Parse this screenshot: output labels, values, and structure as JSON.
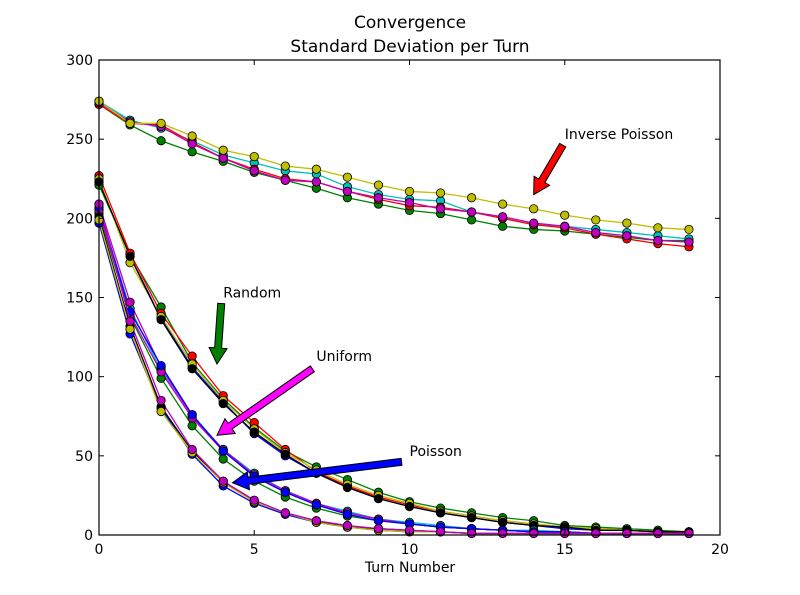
{
  "chart_data": {
    "type": "line",
    "title": "Convergence",
    "subtitle": "Standard Deviation per Turn",
    "xlabel": "Turn Number",
    "ylabel": "",
    "xlim": [
      0,
      20
    ],
    "ylim": [
      0,
      300
    ],
    "xticks": [
      0,
      5,
      10,
      15,
      20
    ],
    "yticks": [
      0,
      50,
      100,
      150,
      200,
      250,
      300
    ],
    "xtick_labels": [
      "0",
      "5",
      "10",
      "15",
      "20"
    ],
    "ytick_labels": [
      "0",
      "50",
      "100",
      "150",
      "200",
      "250",
      "300"
    ],
    "grid": false,
    "legend": "none",
    "x": [
      0,
      1,
      2,
      3,
      4,
      5,
      6,
      7,
      8,
      9,
      10,
      11,
      12,
      13,
      14,
      15,
      16,
      17,
      18,
      19
    ],
    "groups": [
      {
        "name": "Inverse Poisson",
        "series": [
          {
            "color": "#008000",
            "values": [
              272,
              259,
              249,
              242,
              236,
              229,
              224,
              219,
              213,
              209,
              205,
              203,
              199,
              195,
              193,
              192,
              190,
              188,
              186,
              186
            ]
          },
          {
            "color": "#00bfbf",
            "values": [
              274,
              262,
              257,
              249,
              240,
              235,
              230,
              228,
              220,
              215,
              212,
              211,
              204,
              200,
              196,
              195,
              193,
              191,
              189,
              187
            ]
          },
          {
            "color": "#ff0000",
            "values": [
              272,
              260,
              259,
              248,
              238,
              231,
              225,
              223,
              217,
              212,
              208,
              207,
              204,
              200,
              196,
              194,
              190,
              187,
              184,
              182
            ]
          },
          {
            "color": "#bf00bf",
            "values": [
              273,
              261,
              258,
              247,
              238,
              230,
              224,
              223,
              217,
              213,
              210,
              206,
              204,
              201,
              197,
              195,
              191,
              189,
              186,
              185
            ]
          },
          {
            "color": "#bfbf00",
            "values": [
              274,
              260,
              260,
              252,
              243,
              239,
              233,
              231,
              226,
              221,
              217,
              216,
              213,
              209,
              206,
              202,
              199,
              197,
              194,
              193
            ]
          }
        ]
      },
      {
        "name": "Random",
        "series": [
          {
            "color": "#0000ff",
            "values": [
              223,
              176,
              137,
              106,
              84,
              64,
              50,
              39,
              31,
              23,
              18,
              14,
              11,
              8,
              6,
              4,
              3,
              3,
              2,
              2
            ]
          },
          {
            "color": "#008000",
            "values": [
              221,
              177,
              144,
              109,
              86,
              68,
              53,
              43,
              35,
              27,
              21,
              17,
              14,
              11,
              9,
              6,
              5,
              4,
              3,
              2
            ]
          },
          {
            "color": "#ff0000",
            "values": [
              227,
              178,
              140,
              113,
              88,
              71,
              54,
              40,
              31,
              24,
              19,
              15,
              12,
              9,
              7,
              5,
              4,
              3,
              2,
              2
            ]
          },
          {
            "color": "#bfbf00",
            "values": [
              225,
              172,
              138,
              108,
              85,
              67,
              52,
              41,
              32,
              25,
              20,
              15,
              12,
              9,
              7,
              5,
              4,
              3,
              2,
              2
            ]
          },
          {
            "color": "#000000",
            "values": [
              223,
              176,
              136,
              105,
              83,
              65,
              51,
              39,
              30,
              23,
              18,
              14,
              11,
              8,
              6,
              5,
              3,
              3,
              2,
              2
            ]
          }
        ]
      },
      {
        "name": "Uniform",
        "series": [
          {
            "color": "#008000",
            "values": [
              203,
              138,
              99,
              69,
              48,
              34,
              24,
              17,
              12,
              9,
              7,
              5,
              4,
              3,
              2,
              2,
              1,
              1,
              1,
              1
            ]
          },
          {
            "color": "#00bfbf",
            "values": [
              206,
              143,
              104,
              76,
              54,
              39,
              28,
              20,
              15,
              10,
              8,
              6,
              4,
              3,
              3,
              2,
              1,
              1,
              1,
              1
            ]
          },
          {
            "color": "#bf00bf",
            "values": [
              209,
              147,
              106,
              75,
              54,
              38,
              28,
              20,
              14,
              10,
              7,
              5,
              4,
              3,
              2,
              2,
              1,
              1,
              1,
              1
            ]
          },
          {
            "color": "#bf00bf",
            "values": [
              205,
              139,
              103,
              74,
              53,
              37,
              27,
              19,
              14,
              10,
              7,
              5,
              4,
              3,
              2,
              2,
              1,
              1,
              1,
              1
            ]
          },
          {
            "color": "#0000ff",
            "values": [
              207,
              141,
              107,
              76,
              53,
              37,
              27,
              19,
              13,
              9,
              7,
              5,
              4,
              3,
              2,
              2,
              1,
              1,
              1,
              1
            ]
          }
        ]
      },
      {
        "name": "Poisson",
        "series": [
          {
            "color": "#0000ff",
            "values": [
              197,
              127,
              80,
              51,
              31,
              20,
              13,
              8,
              5,
              3,
              2,
              2,
              1,
              1,
              1,
              1,
              1,
              1,
              1,
              1
            ]
          },
          {
            "color": "#000000",
            "values": [
              201,
              132,
              81,
              53,
              34,
              21,
              14,
              9,
              5,
              4,
              3,
              2,
              1,
              1,
              1,
              1,
              1,
              1,
              1,
              1
            ]
          },
          {
            "color": "#bfbf00",
            "values": [
              199,
              130,
              78,
              52,
              33,
              21,
              14,
              8,
              5,
              3,
              2,
              2,
              1,
              1,
              1,
              1,
              1,
              1,
              1,
              1
            ]
          },
          {
            "color": "#bf00bf",
            "values": [
              209,
              135,
              85,
              54,
              34,
              22,
              14,
              9,
              6,
              4,
              3,
              2,
              1,
              1,
              1,
              1,
              1,
              1,
              1,
              1
            ]
          }
        ]
      }
    ],
    "annotations": [
      {
        "text": "Inverse Poisson",
        "arrow_color": "#ff0000",
        "text_at": [
          15,
          250
        ],
        "arrow_to": [
          14,
          215
        ]
      },
      {
        "text": "Random",
        "arrow_color": "#008000",
        "text_at": [
          4,
          150
        ],
        "arrow_to": [
          3.8,
          108
        ]
      },
      {
        "text": "Uniform",
        "arrow_color": "#ff00ff",
        "text_at": [
          7,
          110
        ],
        "arrow_to": [
          3.8,
          63
        ]
      },
      {
        "text": "Poisson",
        "arrow_color": "#0000ff",
        "text_at": [
          10,
          50
        ],
        "arrow_to": [
          4.3,
          33
        ]
      }
    ]
  }
}
